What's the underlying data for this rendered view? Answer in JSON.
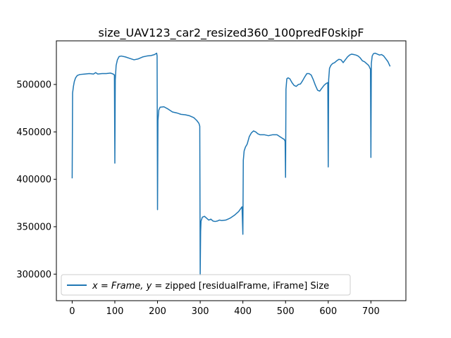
{
  "chart_data": {
    "type": "line",
    "title": "size_UAV123_car2_resized360_100predF0skipF",
    "xlabel": "",
    "ylabel": "",
    "xlim": [
      -37,
      782
    ],
    "ylim": [
      272000,
      546000
    ],
    "x_ticks": [
      0,
      100,
      200,
      300,
      400,
      500,
      600,
      700
    ],
    "y_ticks": [
      300000,
      350000,
      400000,
      450000,
      500000
    ],
    "y_tick_labels": [
      "300000",
      "350000",
      "400000",
      "450000",
      "500000"
    ],
    "grid": false,
    "legend_position": "lower-left",
    "series": [
      {
        "name": "x = Frame, y =  zipped [residualFrame, iFrame] Size",
        "legend_math": "x = Frame, y =",
        "legend_text": " zipped [residualFrame, iFrame] Size",
        "color": "#1f77b4",
        "points": [
          [
            0,
            401000
          ],
          [
            1,
            491000
          ],
          [
            3,
            498000
          ],
          [
            5,
            503000
          ],
          [
            8,
            507000
          ],
          [
            12,
            509500
          ],
          [
            18,
            510500
          ],
          [
            30,
            511000
          ],
          [
            40,
            511500
          ],
          [
            50,
            511000
          ],
          [
            55,
            512500
          ],
          [
            60,
            511000
          ],
          [
            70,
            511500
          ],
          [
            80,
            511500
          ],
          [
            90,
            512000
          ],
          [
            96,
            511000
          ],
          [
            99,
            510000
          ],
          [
            100,
            417000
          ],
          [
            101,
            505000
          ],
          [
            103,
            520000
          ],
          [
            106,
            526000
          ],
          [
            110,
            529500
          ],
          [
            115,
            530000
          ],
          [
            125,
            529000
          ],
          [
            135,
            527500
          ],
          [
            145,
            526000
          ],
          [
            155,
            527000
          ],
          [
            165,
            529000
          ],
          [
            175,
            530000
          ],
          [
            185,
            530500
          ],
          [
            193,
            531500
          ],
          [
            198,
            533000
          ],
          [
            199,
            530000
          ],
          [
            200,
            368000
          ],
          [
            201,
            462000
          ],
          [
            203,
            473000
          ],
          [
            206,
            476000
          ],
          [
            215,
            476500
          ],
          [
            225,
            474000
          ],
          [
            235,
            471000
          ],
          [
            245,
            470000
          ],
          [
            255,
            468500
          ],
          [
            265,
            468000
          ],
          [
            275,
            467000
          ],
          [
            285,
            465000
          ],
          [
            292,
            462000
          ],
          [
            297,
            459000
          ],
          [
            299,
            456000
          ],
          [
            300,
            299000
          ],
          [
            301,
            345000
          ],
          [
            302,
            356000
          ],
          [
            305,
            360000
          ],
          [
            310,
            361000
          ],
          [
            315,
            359000
          ],
          [
            320,
            357000
          ],
          [
            325,
            358000
          ],
          [
            330,
            356000
          ],
          [
            335,
            355500
          ],
          [
            340,
            356000
          ],
          [
            345,
            357000
          ],
          [
            350,
            356500
          ],
          [
            360,
            357000
          ],
          [
            370,
            359000
          ],
          [
            380,
            362000
          ],
          [
            390,
            366000
          ],
          [
            398,
            371000
          ],
          [
            400,
            342000
          ],
          [
            401,
            420000
          ],
          [
            403,
            430000
          ],
          [
            406,
            434000
          ],
          [
            410,
            437000
          ],
          [
            415,
            445000
          ],
          [
            420,
            449000
          ],
          [
            425,
            451000
          ],
          [
            430,
            450000
          ],
          [
            435,
            448000
          ],
          [
            440,
            447000
          ],
          [
            450,
            447000
          ],
          [
            460,
            446000
          ],
          [
            470,
            447000
          ],
          [
            480,
            447000
          ],
          [
            490,
            444000
          ],
          [
            497,
            442000
          ],
          [
            499,
            440000
          ],
          [
            500,
            402000
          ],
          [
            501,
            495000
          ],
          [
            503,
            506000
          ],
          [
            506,
            507000
          ],
          [
            510,
            506000
          ],
          [
            515,
            502000
          ],
          [
            520,
            499000
          ],
          [
            525,
            498000
          ],
          [
            530,
            500000
          ],
          [
            535,
            500500
          ],
          [
            540,
            504000
          ],
          [
            545,
            508000
          ],
          [
            550,
            511500
          ],
          [
            555,
            511500
          ],
          [
            560,
            510000
          ],
          [
            565,
            505000
          ],
          [
            570,
            499000
          ],
          [
            575,
            494000
          ],
          [
            580,
            493000
          ],
          [
            585,
            496000
          ],
          [
            590,
            499000
          ],
          [
            595,
            501000
          ],
          [
            599,
            502000
          ],
          [
            600,
            413000
          ],
          [
            601,
            505000
          ],
          [
            603,
            517000
          ],
          [
            606,
            520000
          ],
          [
            610,
            522000
          ],
          [
            615,
            523000
          ],
          [
            620,
            525000
          ],
          [
            625,
            526500
          ],
          [
            630,
            526000
          ],
          [
            635,
            523000
          ],
          [
            640,
            526000
          ],
          [
            645,
            529000
          ],
          [
            650,
            531000
          ],
          [
            655,
            532000
          ],
          [
            660,
            531500
          ],
          [
            665,
            531000
          ],
          [
            670,
            530000
          ],
          [
            675,
            528000
          ],
          [
            680,
            525000
          ],
          [
            685,
            524000
          ],
          [
            690,
            522000
          ],
          [
            695,
            520000
          ],
          [
            699,
            516000
          ],
          [
            700,
            423000
          ],
          [
            701,
            522000
          ],
          [
            703,
            530000
          ],
          [
            706,
            532500
          ],
          [
            710,
            533000
          ],
          [
            715,
            532000
          ],
          [
            720,
            531000
          ],
          [
            725,
            531500
          ],
          [
            730,
            530000
          ],
          [
            735,
            527000
          ],
          [
            740,
            524000
          ],
          [
            745,
            519000
          ]
        ]
      }
    ]
  }
}
